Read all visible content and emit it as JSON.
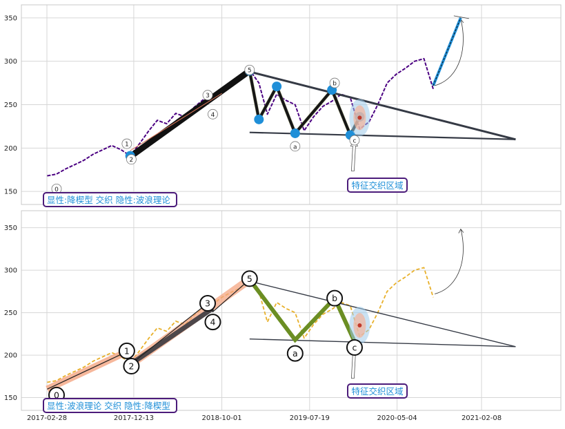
{
  "chart_data": [
    {
      "type": "line",
      "panel": "top",
      "annotation": "显性:降楔型 交织 隐性:波浪理论",
      "callout": "特征交织区域",
      "x_ticks": [
        "2017-02-28",
        "2017-12-13",
        "2018-10-01",
        "2019-07-19",
        "2020-05-04",
        "2021-02-08"
      ],
      "ylim": [
        135,
        365
      ],
      "y_ticks": [
        150,
        200,
        250,
        300,
        350
      ],
      "grid": true,
      "price_color": "#4b0082",
      "price": [
        [
          "2017-03-01",
          168
        ],
        [
          "2017-04-01",
          170
        ],
        [
          "2017-05-01",
          176
        ],
        [
          "2017-06-01",
          181
        ],
        [
          "2017-07-01",
          186
        ],
        [
          "2017-08-01",
          193
        ],
        [
          "2017-09-01",
          198
        ],
        [
          "2017-10-01",
          203
        ],
        [
          "2017-11-01",
          198
        ],
        [
          "2017-12-01",
          191
        ],
        [
          "2018-01-01",
          205
        ],
        [
          "2018-02-01",
          220
        ],
        [
          "2018-03-01",
          232
        ],
        [
          "2018-04-01",
          228
        ],
        [
          "2018-05-01",
          240
        ],
        [
          "2018-06-01",
          236
        ],
        [
          "2018-07-01",
          247
        ],
        [
          "2018-08-01",
          256
        ],
        [
          "2018-09-01",
          260
        ],
        [
          "2018-10-01",
          268
        ],
        [
          "2018-11-01",
          274
        ],
        [
          "2018-12-01",
          279
        ],
        [
          "2019-01-01",
          290
        ],
        [
          "2019-02-01",
          275
        ],
        [
          "2019-03-01",
          239
        ],
        [
          "2019-04-01",
          262
        ],
        [
          "2019-05-01",
          255
        ],
        [
          "2019-06-01",
          250
        ],
        [
          "2019-07-01",
          220
        ],
        [
          "2019-08-01",
          236
        ],
        [
          "2019-09-01",
          248
        ],
        [
          "2019-10-01",
          254
        ],
        [
          "2019-11-01",
          262
        ],
        [
          "2019-12-01",
          258
        ],
        [
          "2020-01-01",
          222
        ],
        [
          "2020-02-01",
          230
        ],
        [
          "2020-03-01",
          250
        ],
        [
          "2020-04-01",
          275
        ],
        [
          "2020-05-01",
          285
        ],
        [
          "2020-06-01",
          292
        ],
        [
          "2020-07-01",
          300
        ],
        [
          "2020-08-01",
          303
        ],
        [
          "2020-09-01",
          268
        ]
      ],
      "wave": {
        "impulse": [
          [
            "2017-12-01",
            190
          ],
          [
            "2019-01-01",
            289
          ]
        ],
        "correction": [
          [
            "2019-01-01",
            289
          ],
          [
            "2019-02-01",
            233
          ],
          [
            "2019-04-01",
            271
          ],
          [
            "2019-06-01",
            217
          ],
          [
            "2019-10-01",
            267
          ],
          [
            "2019-12-01",
            215
          ],
          [
            "2020-01-01",
            236
          ]
        ]
      },
      "wave_labels": [
        {
          "text": "0",
          "x": "2017-04-01",
          "y": 153
        },
        {
          "text": "1",
          "x": "2017-11-20",
          "y": 205
        },
        {
          "text": "2",
          "x": "2017-12-05",
          "y": 187
        },
        {
          "text": "3",
          "x": "2018-08-15",
          "y": 261
        },
        {
          "text": "4",
          "x": "2018-09-01",
          "y": 239
        },
        {
          "text": "5",
          "x": "2019-01-01",
          "y": 290
        },
        {
          "text": "a",
          "x": "2019-06-01",
          "y": 202
        },
        {
          "text": "b",
          "x": "2019-10-10",
          "y": 275
        },
        {
          "text": "c",
          "x": "2019-12-15",
          "y": 209
        }
      ],
      "trend_upper": [
        [
          "2019-01-01",
          288
        ],
        [
          "2021-06-01",
          210
        ]
      ],
      "trend_lower": [
        [
          "2019-01-01",
          218
        ],
        [
          "2021-06-01",
          210
        ]
      ],
      "forecast": [
        [
          "2020-09-01",
          272
        ],
        [
          "2020-12-01",
          350
        ]
      ]
    },
    {
      "type": "line",
      "panel": "bottom",
      "annotation": "显性:波浪理论 交织 隐性:降楔型",
      "callout": "特征交织区域",
      "x_ticks": [
        "2017-02-28",
        "2017-12-13",
        "2018-10-01",
        "2019-07-19",
        "2020-05-04",
        "2021-02-08"
      ],
      "ylim": [
        135,
        370
      ],
      "y_ticks": [
        150,
        200,
        250,
        300,
        350
      ],
      "grid": true,
      "price_color": "#e8b02a",
      "wave": {
        "impulse": [
          [
            "2017-03-01",
            160
          ],
          [
            "2017-11-20",
            204
          ],
          [
            "2017-12-05",
            190
          ],
          [
            "2018-08-15",
            261
          ],
          [
            "2018-09-01",
            251
          ],
          [
            "2019-01-01",
            289
          ]
        ],
        "correction": [
          [
            "2019-01-01",
            289
          ],
          [
            "2019-06-01",
            218
          ],
          [
            "2019-10-10",
            267
          ],
          [
            "2019-12-15",
            216
          ]
        ]
      },
      "wave_labels": [
        {
          "text": "0",
          "x": "2017-04-01",
          "y": 153
        },
        {
          "text": "1",
          "x": "2017-11-20",
          "y": 205
        },
        {
          "text": "2",
          "x": "2017-12-05",
          "y": 187
        },
        {
          "text": "3",
          "x": "2018-08-15",
          "y": 261
        },
        {
          "text": "4",
          "x": "2018-09-01",
          "y": 239
        },
        {
          "text": "5",
          "x": "2019-01-01",
          "y": 290
        },
        {
          "text": "a",
          "x": "2019-06-01",
          "y": 202
        },
        {
          "text": "b",
          "x": "2019-10-10",
          "y": 267
        },
        {
          "text": "c",
          "x": "2019-12-15",
          "y": 209
        }
      ],
      "trend_upper": [
        [
          "2019-01-01",
          287
        ],
        [
          "2021-06-01",
          210
        ]
      ],
      "trend_lower": [
        [
          "2019-01-01",
          219
        ],
        [
          "2021-06-01",
          210
        ]
      ]
    }
  ]
}
